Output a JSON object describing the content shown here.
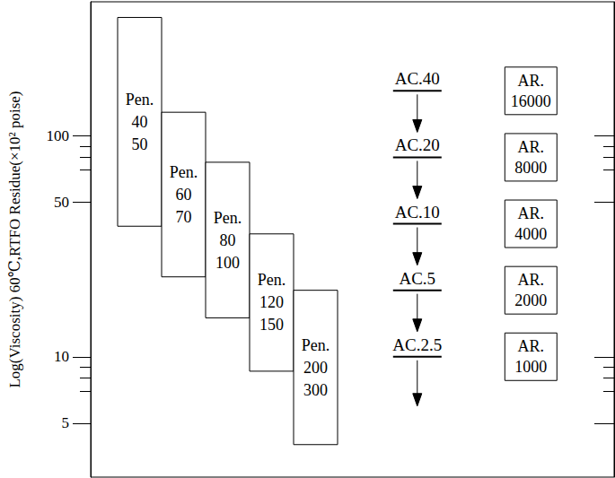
{
  "chart_data": {
    "type": "range_box",
    "y_label": "Log(Viscosity) 60℃,RTFO Residue(×10² poise)",
    "log": "y",
    "ylim": [
      2.85,
      405
    ],
    "yticks": [
      5,
      10,
      50,
      100
    ],
    "yminor_ticks": [
      7,
      8,
      9,
      70,
      80,
      90
    ],
    "grid": false,
    "tick_labels": "y",
    "color": "#000000",
    "penetration_grades": [
      {
        "label": [
          "Pen.",
          "40",
          "50"
        ],
        "low": 39,
        "high": 344
      },
      {
        "label": [
          "Pen.",
          "60",
          "70"
        ],
        "low": 23,
        "high": 128
      },
      {
        "label": [
          "Pen.",
          "80",
          "100"
        ],
        "low": 15,
        "high": 76
      },
      {
        "label": [
          "Pen.",
          "120",
          "150"
        ],
        "low": 8.6,
        "high": 36
      },
      {
        "label": [
          "Pen.",
          "200",
          "300"
        ],
        "low": 4,
        "high": 20
      }
    ],
    "ac_grades": [
      {
        "label": "AC.40",
        "value": 160
      },
      {
        "label": "AC.20",
        "value": 80
      },
      {
        "label": "AC.10",
        "value": 40
      },
      {
        "label": "AC.5",
        "value": 20
      },
      {
        "label": "AC.2.5",
        "value": 10
      }
    ],
    "ar_grades": [
      {
        "label": [
          "AR.",
          "16000"
        ],
        "value": 160
      },
      {
        "label": [
          "AR.",
          "8000"
        ],
        "value": 80
      },
      {
        "label": [
          "AR.",
          "4000"
        ],
        "value": 40
      },
      {
        "label": [
          "AR.",
          "2000"
        ],
        "value": 20
      },
      {
        "label": [
          "AR.",
          "1000"
        ],
        "value": 10
      }
    ]
  }
}
